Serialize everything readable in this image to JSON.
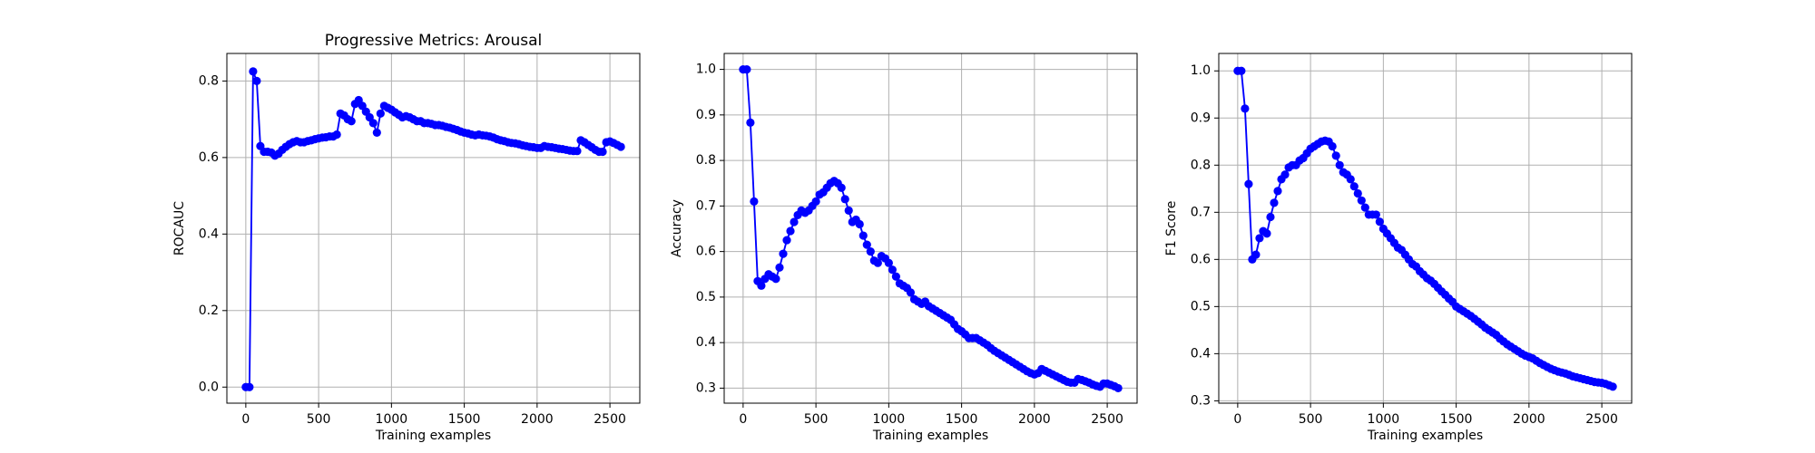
{
  "chart_data": [
    {
      "type": "line",
      "title": "Progressive Metrics: Arousal",
      "x_label": "Training examples",
      "y_label": "ROCAUC",
      "x": [
        0,
        25,
        50,
        75,
        100,
        125,
        150,
        175,
        200,
        225,
        250,
        275,
        300,
        325,
        350,
        375,
        400,
        425,
        450,
        475,
        500,
        525,
        550,
        575,
        600,
        625,
        650,
        675,
        700,
        725,
        750,
        775,
        800,
        825,
        850,
        875,
        900,
        925,
        950,
        975,
        1000,
        1025,
        1050,
        1075,
        1100,
        1125,
        1150,
        1175,
        1200,
        1225,
        1250,
        1275,
        1300,
        1325,
        1350,
        1375,
        1400,
        1425,
        1450,
        1475,
        1500,
        1525,
        1550,
        1575,
        1600,
        1625,
        1650,
        1675,
        1700,
        1725,
        1750,
        1775,
        1800,
        1825,
        1850,
        1875,
        1900,
        1925,
        1950,
        1975,
        2000,
        2025,
        2050,
        2075,
        2100,
        2125,
        2150,
        2175,
        2200,
        2225,
        2250,
        2275,
        2300,
        2325,
        2350,
        2375,
        2400,
        2425,
        2450,
        2475,
        2500,
        2525,
        2550,
        2575
      ],
      "values": [
        0,
        0,
        0.825,
        0.8,
        0.63,
        0.615,
        0.615,
        0.613,
        0.605,
        0.61,
        0.62,
        0.628,
        0.635,
        0.64,
        0.643,
        0.64,
        0.64,
        0.643,
        0.645,
        0.648,
        0.65,
        0.652,
        0.653,
        0.655,
        0.655,
        0.66,
        0.715,
        0.71,
        0.7,
        0.695,
        0.74,
        0.75,
        0.735,
        0.72,
        0.705,
        0.69,
        0.665,
        0.715,
        0.735,
        0.73,
        0.725,
        0.718,
        0.712,
        0.705,
        0.708,
        0.705,
        0.7,
        0.695,
        0.695,
        0.69,
        0.69,
        0.688,
        0.685,
        0.685,
        0.683,
        0.68,
        0.678,
        0.675,
        0.672,
        0.668,
        0.665,
        0.663,
        0.66,
        0.658,
        0.66,
        0.658,
        0.657,
        0.655,
        0.652,
        0.648,
        0.645,
        0.643,
        0.64,
        0.638,
        0.637,
        0.635,
        0.632,
        0.63,
        0.628,
        0.627,
        0.625,
        0.625,
        0.63,
        0.628,
        0.627,
        0.625,
        0.623,
        0.622,
        0.62,
        0.618,
        0.617,
        0.617,
        0.645,
        0.64,
        0.633,
        0.627,
        0.62,
        0.615,
        0.615,
        0.64,
        0.642,
        0.638,
        0.633,
        0.628
      ],
      "color": "#0000ff",
      "grid": true,
      "xlim": [
        -130,
        2705
      ],
      "ylim": [
        -0.042,
        0.872
      ],
      "xticks": [
        0,
        500,
        1000,
        1500,
        2000,
        2500
      ],
      "yticks": [
        {
          "value": 0,
          "label": "0.0"
        },
        0.2,
        0.4,
        0.6,
        0.8
      ]
    },
    {
      "type": "line",
      "x_label": "Training examples",
      "y_label": "Accuracy",
      "x": [
        0,
        25,
        50,
        75,
        100,
        125,
        150,
        175,
        200,
        225,
        250,
        275,
        300,
        325,
        350,
        375,
        400,
        425,
        450,
        475,
        500,
        525,
        550,
        575,
        600,
        625,
        650,
        675,
        700,
        725,
        750,
        775,
        800,
        825,
        850,
        875,
        900,
        925,
        950,
        975,
        1000,
        1025,
        1050,
        1075,
        1100,
        1125,
        1150,
        1175,
        1200,
        1225,
        1250,
        1275,
        1300,
        1325,
        1350,
        1375,
        1400,
        1425,
        1450,
        1475,
        1500,
        1525,
        1550,
        1575,
        1600,
        1625,
        1650,
        1675,
        1700,
        1725,
        1750,
        1775,
        1800,
        1825,
        1850,
        1875,
        1900,
        1925,
        1950,
        1975,
        2000,
        2025,
        2050,
        2075,
        2100,
        2125,
        2150,
        2175,
        2200,
        2225,
        2250,
        2275,
        2300,
        2325,
        2350,
        2375,
        2400,
        2425,
        2450,
        2475,
        2500,
        2525,
        2550,
        2575
      ],
      "values": [
        1.0,
        1.0,
        0.883,
        0.71,
        0.535,
        0.525,
        0.54,
        0.55,
        0.545,
        0.54,
        0.565,
        0.595,
        0.625,
        0.645,
        0.665,
        0.68,
        0.69,
        0.685,
        0.69,
        0.7,
        0.71,
        0.725,
        0.73,
        0.74,
        0.75,
        0.755,
        0.75,
        0.74,
        0.715,
        0.69,
        0.665,
        0.67,
        0.66,
        0.635,
        0.615,
        0.6,
        0.58,
        0.575,
        0.59,
        0.585,
        0.575,
        0.56,
        0.545,
        0.53,
        0.525,
        0.52,
        0.51,
        0.495,
        0.49,
        0.485,
        0.49,
        0.48,
        0.475,
        0.47,
        0.465,
        0.46,
        0.455,
        0.45,
        0.44,
        0.43,
        0.425,
        0.418,
        0.41,
        0.41,
        0.41,
        0.405,
        0.4,
        0.395,
        0.388,
        0.382,
        0.377,
        0.372,
        0.367,
        0.362,
        0.357,
        0.352,
        0.347,
        0.342,
        0.337,
        0.333,
        0.33,
        0.333,
        0.342,
        0.338,
        0.334,
        0.33,
        0.326,
        0.322,
        0.318,
        0.314,
        0.312,
        0.312,
        0.32,
        0.318,
        0.315,
        0.312,
        0.308,
        0.305,
        0.303,
        0.31,
        0.31,
        0.307,
        0.304,
        0.3
      ],
      "color": "#0000ff",
      "grid": true,
      "xlim": [
        -130,
        2705
      ],
      "ylim": [
        0.267,
        1.035
      ],
      "xticks": [
        0,
        500,
        1000,
        1500,
        2000,
        2500
      ],
      "yticks": [
        0.3,
        0.4,
        0.5,
        0.6,
        0.7,
        0.8,
        0.9,
        {
          "value": 1,
          "label": "1.0"
        }
      ]
    },
    {
      "type": "line",
      "x_label": "Training examples",
      "y_label": "F1 Score",
      "x": [
        0,
        25,
        50,
        75,
        100,
        125,
        150,
        175,
        200,
        225,
        250,
        275,
        300,
        325,
        350,
        375,
        400,
        425,
        450,
        475,
        500,
        525,
        550,
        575,
        600,
        625,
        650,
        675,
        700,
        725,
        750,
        775,
        800,
        825,
        850,
        875,
        900,
        925,
        950,
        975,
        1000,
        1025,
        1050,
        1075,
        1100,
        1125,
        1150,
        1175,
        1200,
        1225,
        1250,
        1275,
        1300,
        1325,
        1350,
        1375,
        1400,
        1425,
        1450,
        1475,
        1500,
        1525,
        1550,
        1575,
        1600,
        1625,
        1650,
        1675,
        1700,
        1725,
        1750,
        1775,
        1800,
        1825,
        1850,
        1875,
        1900,
        1925,
        1950,
        1975,
        2000,
        2025,
        2050,
        2075,
        2100,
        2125,
        2150,
        2175,
        2200,
        2225,
        2250,
        2275,
        2300,
        2325,
        2350,
        2375,
        2400,
        2425,
        2450,
        2475,
        2500,
        2525,
        2550,
        2575
      ],
      "values": [
        1.0,
        1.0,
        0.92,
        0.76,
        0.6,
        0.61,
        0.645,
        0.66,
        0.655,
        0.69,
        0.72,
        0.745,
        0.77,
        0.78,
        0.795,
        0.8,
        0.8,
        0.81,
        0.815,
        0.825,
        0.835,
        0.84,
        0.845,
        0.85,
        0.852,
        0.85,
        0.84,
        0.82,
        0.8,
        0.785,
        0.78,
        0.77,
        0.755,
        0.74,
        0.725,
        0.71,
        0.695,
        0.695,
        0.695,
        0.68,
        0.665,
        0.655,
        0.645,
        0.635,
        0.625,
        0.62,
        0.61,
        0.6,
        0.59,
        0.585,
        0.575,
        0.568,
        0.56,
        0.555,
        0.548,
        0.54,
        0.532,
        0.525,
        0.517,
        0.51,
        0.5,
        0.495,
        0.49,
        0.485,
        0.48,
        0.474,
        0.468,
        0.462,
        0.455,
        0.45,
        0.445,
        0.44,
        0.432,
        0.426,
        0.42,
        0.415,
        0.41,
        0.405,
        0.4,
        0.396,
        0.393,
        0.39,
        0.385,
        0.38,
        0.376,
        0.372,
        0.368,
        0.365,
        0.362,
        0.36,
        0.358,
        0.355,
        0.352,
        0.35,
        0.348,
        0.346,
        0.344,
        0.342,
        0.34,
        0.339,
        0.338,
        0.336,
        0.333,
        0.33
      ],
      "color": "#0000ff",
      "grid": true,
      "xlim": [
        -130,
        2705
      ],
      "ylim": [
        0.295,
        1.037
      ],
      "xticks": [
        0,
        500,
        1000,
        1500,
        2000,
        2500
      ],
      "yticks": [
        0.3,
        0.4,
        0.5,
        0.6,
        0.7,
        0.8,
        0.9,
        {
          "value": 1,
          "label": "1.0"
        }
      ]
    }
  ]
}
